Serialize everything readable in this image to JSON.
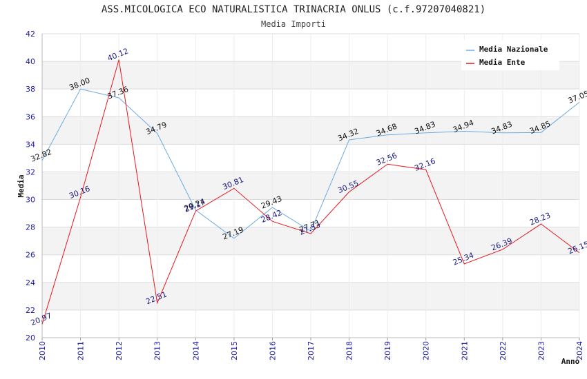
{
  "chart_data": {
    "type": "line",
    "title": "ASS.MICOLOGICA ECO NATURALISTICA TRINACRIA ONLUS (c.f.97207040821)",
    "subtitle": "Media Importi",
    "xlabel": "Anno",
    "ylabel": "Media",
    "ylim": [
      20,
      42
    ],
    "yticks": [
      20,
      22,
      24,
      26,
      28,
      30,
      32,
      34,
      36,
      38,
      40,
      42
    ],
    "x": [
      "2010",
      "2011",
      "2012",
      "2013",
      "2014",
      "2015",
      "2016",
      "2017",
      "2018",
      "2019",
      "2020",
      "2021",
      "2022",
      "2023",
      "2024"
    ],
    "legend_position": "top-right",
    "grid": true,
    "series": [
      {
        "name": "Media Nazionale",
        "color": "#6aaae4",
        "values": [
          32.82,
          38.0,
          37.36,
          34.79,
          29.24,
          27.19,
          29.43,
          27.71,
          34.32,
          34.68,
          34.83,
          34.94,
          34.83,
          34.85,
          37.05
        ],
        "labels": [
          "32.82",
          "38.00",
          "37.36",
          "34.79",
          "29.24",
          "27.19",
          "29.43",
          "27.71",
          "34.32",
          "34.68",
          "34.83",
          "34.94",
          "34.83",
          "34.85",
          "37.05"
        ]
      },
      {
        "name": "Media Ente",
        "color": "#e8141c",
        "values": [
          20.97,
          30.16,
          40.12,
          22.51,
          29.17,
          30.81,
          28.42,
          27.53,
          30.55,
          32.56,
          32.16,
          25.34,
          26.39,
          28.23,
          26.15
        ],
        "labels": [
          "20.97",
          "30.16",
          "40.12",
          "22.51",
          "29.17",
          "30.81",
          "28.42",
          "27.53",
          "30.55",
          "32.56",
          "32.16",
          "25.34",
          "26.39",
          "28.23",
          "26.15"
        ]
      }
    ]
  }
}
